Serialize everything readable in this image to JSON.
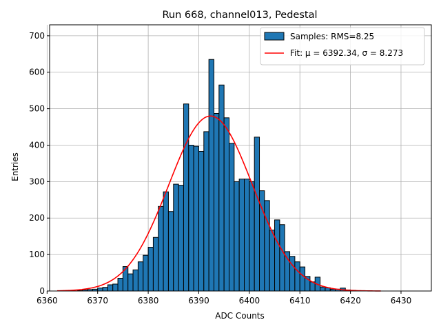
{
  "chart_data": {
    "type": "bar",
    "title": "Run 668, channel013, Pedestal",
    "xlabel": "ADC Counts",
    "ylabel": "Entries",
    "xlim": [
      6360.5,
      6436
    ],
    "ylim": [
      0,
      730
    ],
    "xticks": [
      6360,
      6370,
      6380,
      6390,
      6400,
      6410,
      6420,
      6430
    ],
    "yticks": [
      0,
      100,
      200,
      300,
      400,
      500,
      600,
      700
    ],
    "grid": true,
    "legend_position": "top-right",
    "bin_width": 1,
    "bin_start": 6362,
    "histogram": {
      "name": "Samples: RMS=8.25",
      "color": "#1f77b4",
      "values": [
        0,
        0,
        0,
        0,
        1,
        3,
        4,
        5,
        8,
        10,
        17,
        19,
        35,
        67,
        47,
        58,
        80,
        98,
        120,
        147,
        232,
        272,
        218,
        293,
        290,
        513,
        400,
        397,
        383,
        437,
        635,
        487,
        565,
        475,
        405,
        300,
        307,
        307,
        300,
        422,
        275,
        248,
        167,
        195,
        182,
        108,
        95,
        80,
        66,
        40,
        25,
        38,
        11,
        9,
        5,
        5,
        8,
        3,
        2,
        1,
        1,
        0,
        0,
        0
      ]
    },
    "fit": {
      "name": "Fit: μ = 6392.34, σ = 8.273",
      "color": "#ff0000",
      "mu": 6392.34,
      "sigma": 8.273,
      "amplitude": 480,
      "x_range": [
        6362,
        6426
      ]
    }
  }
}
